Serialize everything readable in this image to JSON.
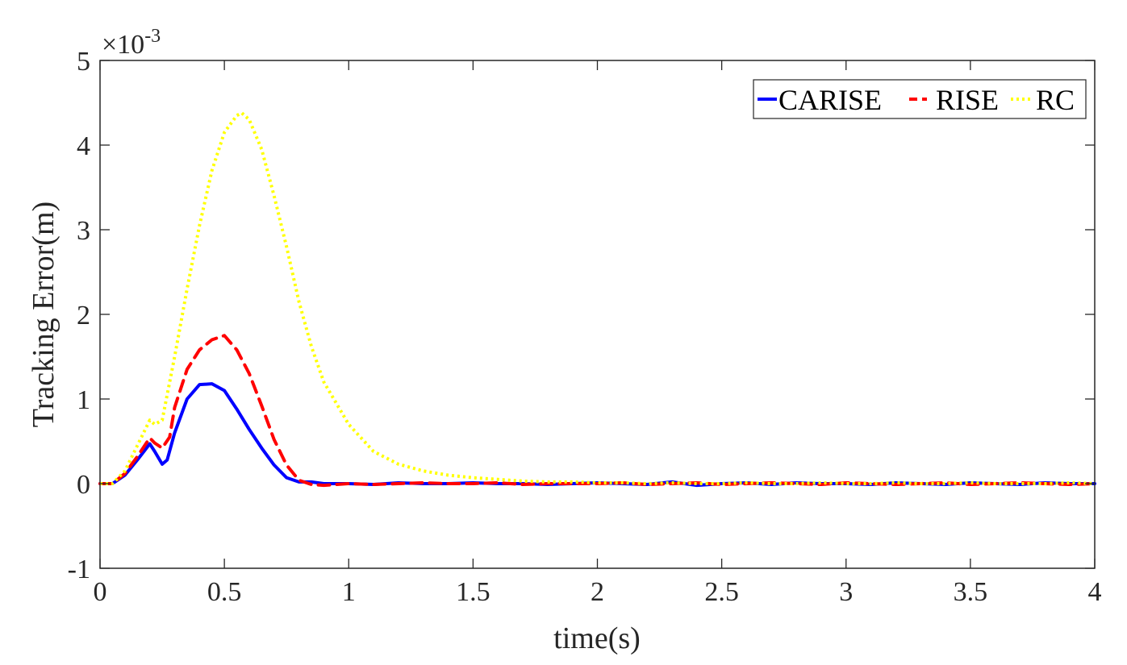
{
  "chart_data": {
    "type": "line",
    "title": "",
    "xlabel": "time(s)",
    "ylabel": "Tracking Error(m)",
    "y_multiplier": "×10",
    "y_multiplier_exponent": "-3",
    "xlim": [
      0,
      4
    ],
    "ylim": [
      -1,
      5
    ],
    "xticks": [
      0,
      0.5,
      1,
      1.5,
      2,
      2.5,
      3,
      3.5,
      4
    ],
    "xtick_labels": [
      "0",
      "0.5",
      "1",
      "1.5",
      "2",
      "2.5",
      "3",
      "3.5",
      "4"
    ],
    "yticks": [
      -1,
      0,
      1,
      2,
      3,
      4,
      5
    ],
    "ytick_labels": [
      "-1",
      "0",
      "1",
      "2",
      "3",
      "4",
      "5"
    ],
    "grid": false,
    "legend_position": "top-right",
    "series": [
      {
        "name": "CARISE",
        "color": "#0000ff",
        "style": "solid",
        "x": [
          0,
          0.05,
          0.1,
          0.15,
          0.2,
          0.22,
          0.25,
          0.27,
          0.3,
          0.35,
          0.4,
          0.45,
          0.5,
          0.55,
          0.6,
          0.65,
          0.7,
          0.75,
          0.8,
          0.85,
          0.9,
          1.0,
          1.1,
          1.2,
          1.3,
          1.4,
          1.5,
          1.6,
          1.7,
          1.8,
          1.9,
          2.0,
          2.1,
          2.2,
          2.3,
          2.4,
          2.5,
          2.6,
          2.7,
          2.8,
          2.9,
          3.0,
          3.1,
          3.2,
          3.3,
          3.4,
          3.5,
          3.6,
          3.7,
          3.8,
          3.9,
          4.0
        ],
        "y": [
          0,
          0,
          0.1,
          0.28,
          0.47,
          0.38,
          0.23,
          0.28,
          0.6,
          1.0,
          1.17,
          1.18,
          1.1,
          0.88,
          0.64,
          0.42,
          0.22,
          0.07,
          0.02,
          0.02,
          0.0,
          0.0,
          -0.01,
          0.01,
          0.0,
          0.0,
          0.01,
          0.0,
          0.0,
          -0.01,
          0.0,
          0.01,
          0.0,
          -0.01,
          0.02,
          -0.02,
          0.0,
          0.01,
          -0.01,
          0.01,
          0.0,
          0.0,
          -0.01,
          0.01,
          0.0,
          -0.01,
          0.01,
          0.0,
          -0.01,
          0.01,
          0.0,
          0.0
        ]
      },
      {
        "name": "RISE",
        "color": "#ff0000",
        "style": "dashed",
        "x": [
          0,
          0.05,
          0.1,
          0.15,
          0.2,
          0.22,
          0.25,
          0.28,
          0.3,
          0.35,
          0.4,
          0.45,
          0.5,
          0.55,
          0.6,
          0.65,
          0.7,
          0.75,
          0.8,
          0.85,
          0.9,
          1.0,
          1.1,
          1.2,
          1.3,
          1.4,
          1.5,
          1.6,
          1.7,
          1.8,
          1.9,
          2.0,
          2.1,
          2.2,
          2.3,
          2.4,
          2.5,
          2.6,
          2.7,
          2.8,
          2.9,
          3.0,
          3.1,
          3.2,
          3.3,
          3.4,
          3.5,
          3.6,
          3.7,
          3.8,
          3.9,
          4.0
        ],
        "y": [
          0,
          0,
          0.12,
          0.32,
          0.54,
          0.48,
          0.42,
          0.55,
          0.9,
          1.35,
          1.58,
          1.7,
          1.75,
          1.58,
          1.3,
          0.92,
          0.52,
          0.22,
          0.04,
          -0.01,
          -0.02,
          0.0,
          -0.01,
          0.0,
          0.01,
          0.0,
          0.0,
          0.01,
          -0.01,
          0.0,
          0.0,
          0.0,
          0.01,
          -0.01,
          0.0,
          0.01,
          -0.01,
          0.0,
          0.01,
          0.0,
          -0.01,
          0.01,
          0.0,
          -0.01,
          0.0,
          0.01,
          -0.01,
          0.0,
          0.01,
          0.0,
          -0.01,
          0.0
        ]
      },
      {
        "name": "RC",
        "color": "#ffff00",
        "style": "dotted",
        "x": [
          0,
          0.05,
          0.1,
          0.15,
          0.2,
          0.22,
          0.25,
          0.3,
          0.35,
          0.4,
          0.45,
          0.5,
          0.55,
          0.57,
          0.6,
          0.65,
          0.7,
          0.75,
          0.8,
          0.85,
          0.9,
          1.0,
          1.1,
          1.2,
          1.3,
          1.4,
          1.5,
          1.6,
          1.7,
          1.8,
          1.9,
          2.0,
          2.1,
          2.2,
          2.3,
          2.4,
          2.5,
          2.6,
          2.7,
          2.8,
          2.9,
          3.0,
          3.1,
          3.2,
          3.3,
          3.4,
          3.5,
          3.6,
          3.7,
          3.8,
          3.9,
          4.0
        ],
        "y": [
          0,
          0,
          0.15,
          0.45,
          0.75,
          0.7,
          0.75,
          1.5,
          2.3,
          3.05,
          3.7,
          4.15,
          4.35,
          4.38,
          4.3,
          3.95,
          3.4,
          2.8,
          2.15,
          1.62,
          1.2,
          0.7,
          0.38,
          0.23,
          0.15,
          0.1,
          0.07,
          0.05,
          0.03,
          0.02,
          0.02,
          0.01,
          0.01,
          0.0,
          0.01,
          0.0,
          0.0,
          0.01,
          0.0,
          0.0,
          0.01,
          0.0,
          0.0,
          0.01,
          0.0,
          0.0,
          0.01,
          0.0,
          0.0,
          0.0,
          0.01,
          0.0
        ]
      }
    ]
  }
}
